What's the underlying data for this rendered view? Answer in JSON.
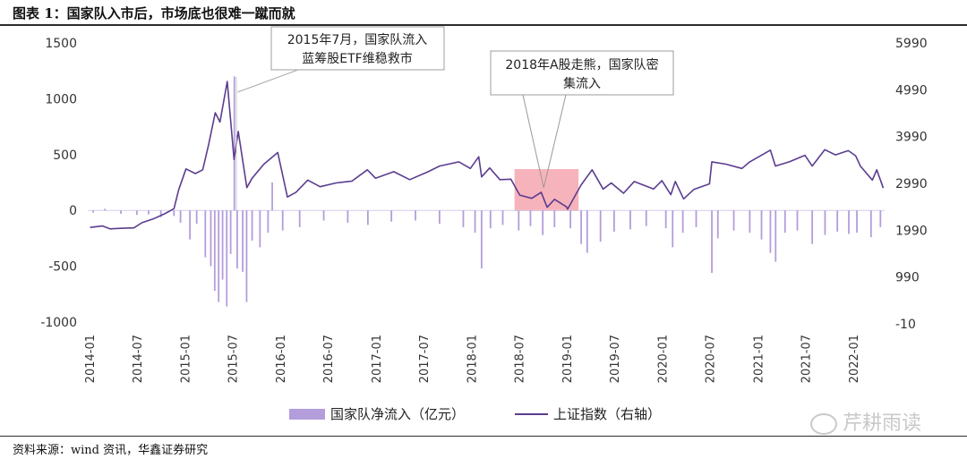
{
  "title": "图表 1：国家队入市后，市场底也很难一蹴而就",
  "source": "资料来源：wind 资讯，华鑫证券研究",
  "watermark": "芹耕雨读",
  "colors": {
    "bar": "#b39ddb",
    "line": "#5b3d8f",
    "highlight": "#f28b97",
    "annotation_border": "#9e9e9e"
  },
  "chart_data": {
    "type": "bar+line",
    "x_tick_labels": [
      "2014-01",
      "2014-07",
      "2015-01",
      "2015-07",
      "2016-01",
      "2016-07",
      "2017-01",
      "2017-07",
      "2018-01",
      "2018-07",
      "2019-01",
      "2019-07",
      "2020-01",
      "2020-07",
      "2021-01",
      "2021-07",
      "2022-01"
    ],
    "y_left": {
      "ticks": [
        "1500",
        "1000",
        "500",
        "0",
        "-500",
        "-1000"
      ],
      "range": [
        -1000,
        1500
      ]
    },
    "y_right": {
      "ticks": [
        "5990",
        "4990",
        "3990",
        "2990",
        "1990",
        "990",
        "-10"
      ],
      "range": [
        -10,
        5990
      ]
    },
    "legend": {
      "bar_label": "国家队净流入（亿元）",
      "line_label": "上证指数（右轴）"
    },
    "series": [
      {
        "name": "上证指数（右轴）",
        "axis": "right",
        "points": [
          [
            "2014-01-03",
            2050
          ],
          [
            "2014-02-20",
            2080
          ],
          [
            "2014-03-20",
            2020
          ],
          [
            "2014-05-01",
            2030
          ],
          [
            "2014-06-20",
            2040
          ],
          [
            "2014-07-20",
            2150
          ],
          [
            "2014-09-01",
            2230
          ],
          [
            "2014-10-15",
            2340
          ],
          [
            "2014-11-20",
            2450
          ],
          [
            "2014-12-08",
            2850
          ],
          [
            "2015-01-05",
            3300
          ],
          [
            "2015-02-10",
            3200
          ],
          [
            "2015-03-10",
            3280
          ],
          [
            "2015-04-01",
            3800
          ],
          [
            "2015-04-27",
            4500
          ],
          [
            "2015-05-15",
            4300
          ],
          [
            "2015-06-12",
            5166
          ],
          [
            "2015-07-08",
            3500
          ],
          [
            "2015-07-24",
            4100
          ],
          [
            "2015-08-26",
            2900
          ],
          [
            "2015-09-15",
            3100
          ],
          [
            "2015-10-30",
            3400
          ],
          [
            "2015-12-22",
            3650
          ],
          [
            "2016-01-28",
            2700
          ],
          [
            "2016-03-01",
            2800
          ],
          [
            "2016-04-15",
            3060
          ],
          [
            "2016-06-01",
            2920
          ],
          [
            "2016-08-01",
            3000
          ],
          [
            "2016-10-01",
            3040
          ],
          [
            "2016-11-29",
            3280
          ],
          [
            "2016-12-30",
            3100
          ],
          [
            "2017-03-10",
            3240
          ],
          [
            "2017-05-10",
            3070
          ],
          [
            "2017-07-20",
            3240
          ],
          [
            "2017-09-01",
            3360
          ],
          [
            "2017-11-14",
            3450
          ],
          [
            "2017-12-28",
            3310
          ],
          [
            "2018-01-29",
            3560
          ],
          [
            "2018-02-09",
            3130
          ],
          [
            "2018-03-12",
            3320
          ],
          [
            "2018-04-20",
            3070
          ],
          [
            "2018-06-01",
            3080
          ],
          [
            "2018-07-05",
            2740
          ],
          [
            "2018-08-20",
            2670
          ],
          [
            "2018-09-25",
            2800
          ],
          [
            "2018-10-18",
            2480
          ],
          [
            "2018-11-15",
            2650
          ],
          [
            "2018-12-31",
            2490
          ],
          [
            "2019-01-04",
            2440
          ],
          [
            "2019-02-25",
            2960
          ],
          [
            "2019-04-08",
            3280
          ],
          [
            "2019-05-20",
            2870
          ],
          [
            "2019-06-20",
            3000
          ],
          [
            "2019-08-06",
            2780
          ],
          [
            "2019-09-16",
            3030
          ],
          [
            "2019-11-29",
            2870
          ],
          [
            "2019-12-31",
            3050
          ],
          [
            "2020-02-03",
            2750
          ],
          [
            "2020-02-20",
            3030
          ],
          [
            "2020-03-23",
            2660
          ],
          [
            "2020-05-01",
            2860
          ],
          [
            "2020-06-30",
            2980
          ],
          [
            "2020-07-09",
            3450
          ],
          [
            "2020-09-01",
            3400
          ],
          [
            "2020-11-01",
            3310
          ],
          [
            "2020-12-01",
            3450
          ],
          [
            "2021-02-18",
            3700
          ],
          [
            "2021-03-09",
            3360
          ],
          [
            "2021-05-01",
            3450
          ],
          [
            "2021-06-30",
            3590
          ],
          [
            "2021-07-28",
            3360
          ],
          [
            "2021-09-14",
            3710
          ],
          [
            "2021-10-25",
            3600
          ],
          [
            "2021-12-13",
            3690
          ],
          [
            "2022-01-10",
            3580
          ],
          [
            "2022-01-28",
            3360
          ],
          [
            "2022-03-15",
            3060
          ],
          [
            "2022-04-01",
            3280
          ],
          [
            "2022-04-26",
            2890
          ]
        ]
      },
      {
        "name": "国家队净流入（亿元）",
        "axis": "left",
        "type": "bar",
        "bars": [
          [
            "2014-01-15",
            -20
          ],
          [
            "2014-03-01",
            15
          ],
          [
            "2014-05-01",
            -30
          ],
          [
            "2014-07-01",
            -40
          ],
          [
            "2014-08-15",
            -35
          ],
          [
            "2014-10-01",
            -60
          ],
          [
            "2014-11-20",
            -50
          ],
          [
            "2014-12-15",
            -110
          ],
          [
            "2015-01-20",
            -260
          ],
          [
            "2015-02-15",
            -120
          ],
          [
            "2015-03-20",
            -420
          ],
          [
            "2015-04-10",
            -500
          ],
          [
            "2015-04-25",
            -720
          ],
          [
            "2015-05-10",
            -820
          ],
          [
            "2015-05-25",
            -620
          ],
          [
            "2015-06-10",
            -860
          ],
          [
            "2015-06-25",
            -390
          ],
          [
            "2015-07-09",
            1200
          ],
          [
            "2015-07-20",
            -520
          ],
          [
            "2015-08-10",
            -550
          ],
          [
            "2015-08-25",
            -820
          ],
          [
            "2015-09-15",
            -270
          ],
          [
            "2015-10-15",
            -330
          ],
          [
            "2015-11-15",
            -200
          ],
          [
            "2015-12-01",
            250
          ],
          [
            "2016-01-10",
            -180
          ],
          [
            "2016-03-15",
            -150
          ],
          [
            "2016-06-15",
            -90
          ],
          [
            "2016-09-15",
            -110
          ],
          [
            "2016-12-01",
            -130
          ],
          [
            "2017-03-01",
            -100
          ],
          [
            "2017-06-01",
            -90
          ],
          [
            "2017-09-01",
            -120
          ],
          [
            "2017-12-01",
            -150
          ],
          [
            "2018-01-15",
            -200
          ],
          [
            "2018-02-09",
            -520
          ],
          [
            "2018-03-15",
            -160
          ],
          [
            "2018-05-01",
            -130
          ],
          [
            "2018-07-01",
            -180
          ],
          [
            "2018-08-15",
            -140
          ],
          [
            "2018-10-01",
            -220
          ],
          [
            "2018-11-15",
            -150
          ],
          [
            "2019-01-15",
            -160
          ],
          [
            "2019-02-25",
            -300
          ],
          [
            "2019-03-20",
            -380
          ],
          [
            "2019-05-10",
            -280
          ],
          [
            "2019-07-01",
            -190
          ],
          [
            "2019-09-01",
            -170
          ],
          [
            "2019-11-01",
            -140
          ],
          [
            "2020-01-15",
            -160
          ],
          [
            "2020-02-10",
            -330
          ],
          [
            "2020-03-20",
            -200
          ],
          [
            "2020-05-10",
            -150
          ],
          [
            "2020-07-09",
            -560
          ],
          [
            "2020-08-01",
            -250
          ],
          [
            "2020-10-01",
            -180
          ],
          [
            "2020-12-01",
            -200
          ],
          [
            "2021-01-15",
            -260
          ],
          [
            "2021-02-18",
            -380
          ],
          [
            "2021-03-10",
            -460
          ],
          [
            "2021-04-15",
            -200
          ],
          [
            "2021-06-01",
            -180
          ],
          [
            "2021-07-28",
            -300
          ],
          [
            "2021-09-15",
            -220
          ],
          [
            "2021-11-01",
            -190
          ],
          [
            "2021-12-15",
            -210
          ],
          [
            "2022-01-15",
            -200
          ],
          [
            "2022-03-10",
            -240
          ],
          [
            "2022-04-15",
            -150
          ]
        ]
      }
    ],
    "annotations": [
      {
        "text_lines": [
          "2015年7月，国家队流入",
          "蓝筹股ETF维稳救市"
        ],
        "target_date": "2015-07-01"
      },
      {
        "text_lines": [
          "2018年A股走熊，国家队密",
          "集流入"
        ],
        "target_date": "2018-10-15",
        "highlight_from": "2018-06-15",
        "highlight_to": "2019-02-15"
      }
    ]
  }
}
